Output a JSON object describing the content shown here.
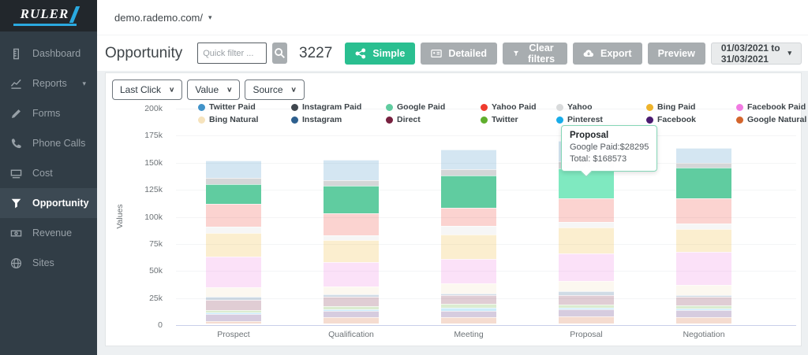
{
  "topbar": {
    "domain": "demo.rademo.com/"
  },
  "icons": {
    "caret_down": "▾",
    "chevron_down": "∨"
  },
  "sidebar": {
    "items": [
      {
        "label": "Dashboard",
        "icon": "ruler-icon",
        "active": false
      },
      {
        "label": "Reports",
        "icon": "chart-line-icon",
        "active": false,
        "has_caret": true
      },
      {
        "label": "Forms",
        "icon": "pencil-icon",
        "active": false
      },
      {
        "label": "Phone Calls",
        "icon": "phone-icon",
        "active": false
      },
      {
        "label": "Cost",
        "icon": "cash-icon",
        "active": false
      },
      {
        "label": "Opportunity",
        "icon": "funnel-icon",
        "active": true
      },
      {
        "label": "Revenue",
        "icon": "banknote-icon",
        "active": false
      },
      {
        "label": "Sites",
        "icon": "globe-icon",
        "active": false
      }
    ]
  },
  "header": {
    "title": "Opportunity",
    "quick_filter_placeholder": "Quick filter ...",
    "count": "3227",
    "buttons": {
      "simple": "Simple",
      "detailed": "Detailed",
      "clear_filters": "Clear filters",
      "export": "Export",
      "preview": "Preview"
    },
    "date_range": "01/03/2021 to 31/03/2021"
  },
  "controls": {
    "attribution": "Last Click",
    "metric": "Value",
    "dimension": "Source"
  },
  "chart_data": {
    "type": "bar",
    "subtype": "stacked",
    "title": "",
    "xlabel": "",
    "ylabel": "Values",
    "ylim": [
      0,
      200000
    ],
    "ytick_step": 25000,
    "ytick_labels": [
      "200k",
      "175k",
      "150k",
      "125k",
      "100k",
      "75k",
      "50k",
      "25k",
      "0"
    ],
    "grid": true,
    "legend_position": "top",
    "categories": [
      "Prospect",
      "Qualification",
      "Meeting",
      "Proposal",
      "Negotiation"
    ],
    "series": [
      {
        "name": "Twitter Paid",
        "color": "#4193c9",
        "values_k": [
          16,
          19,
          18.5,
          19,
          14
        ]
      },
      {
        "name": "Instagram Paid",
        "color": "#40474e",
        "values_k": [
          6,
          5.5,
          5.5,
          6,
          4.5
        ]
      },
      {
        "name": "Google Paid",
        "color": "#60cca0",
        "values_k": [
          18,
          25,
          30,
          28.3,
          28
        ]
      },
      {
        "name": "Yahoo Paid",
        "color": "#ef3b2d",
        "values_k": [
          21,
          20.5,
          16.5,
          21.5,
          23.5
        ]
      },
      {
        "name": "Yahoo",
        "color": "#d8dadb",
        "values_k": [
          6,
          4.5,
          8,
          5,
          5.5
        ]
      },
      {
        "name": "Bing Paid",
        "color": "#eeb32b",
        "values_k": [
          22,
          20.5,
          22.5,
          24,
          21
        ]
      },
      {
        "name": "Facebook Paid",
        "color": "#f17ae2",
        "values_k": [
          28,
          22,
          23,
          25.5,
          30
        ]
      },
      {
        "name": "Bing Natural",
        "color": "#f6e3bd",
        "values_k": [
          9,
          7.5,
          9.5,
          9.5,
          9.5
        ]
      },
      {
        "name": "Instagram",
        "color": "#2d5f8e",
        "values_k": [
          3,
          2.5,
          1.5,
          3.5,
          2
        ]
      },
      {
        "name": "Direct",
        "color": "#77203f",
        "values_k": [
          9,
          8.5,
          8,
          8.5,
          8
        ]
      },
      {
        "name": "Twitter",
        "color": "#5fae2d",
        "values_k": [
          2.5,
          3,
          3.5,
          3.5,
          3
        ]
      },
      {
        "name": "Pinterest",
        "color": "#18ace9",
        "values_k": [
          1,
          1,
          2.5,
          1,
          1
        ]
      },
      {
        "name": "Facebook",
        "color": "#4a1a70",
        "values_k": [
          6.5,
          6.5,
          6,
          6.5,
          7
        ]
      },
      {
        "name": "Google Natural",
        "color": "#d4652c",
        "values_k": [
          2.5,
          5.5,
          6,
          6.8,
          5.5
        ]
      }
    ],
    "emphasized_series": "Google Paid",
    "highlight": {
      "category": "Proposal",
      "series": "Google Paid",
      "color": "#7fe9c0"
    },
    "totals_k": [
      150.5,
      151.5,
      161,
      168.6,
      162.5
    ]
  },
  "tooltip": {
    "title": "Proposal",
    "line1": "Google Paid:$28295",
    "line2": "Total: $168573"
  },
  "colors": {
    "accent_green": "#2abf90",
    "button_gray": "#a8adb0",
    "sidebar_bg": "#313d46",
    "logo_blue": "#2aa9e0"
  }
}
